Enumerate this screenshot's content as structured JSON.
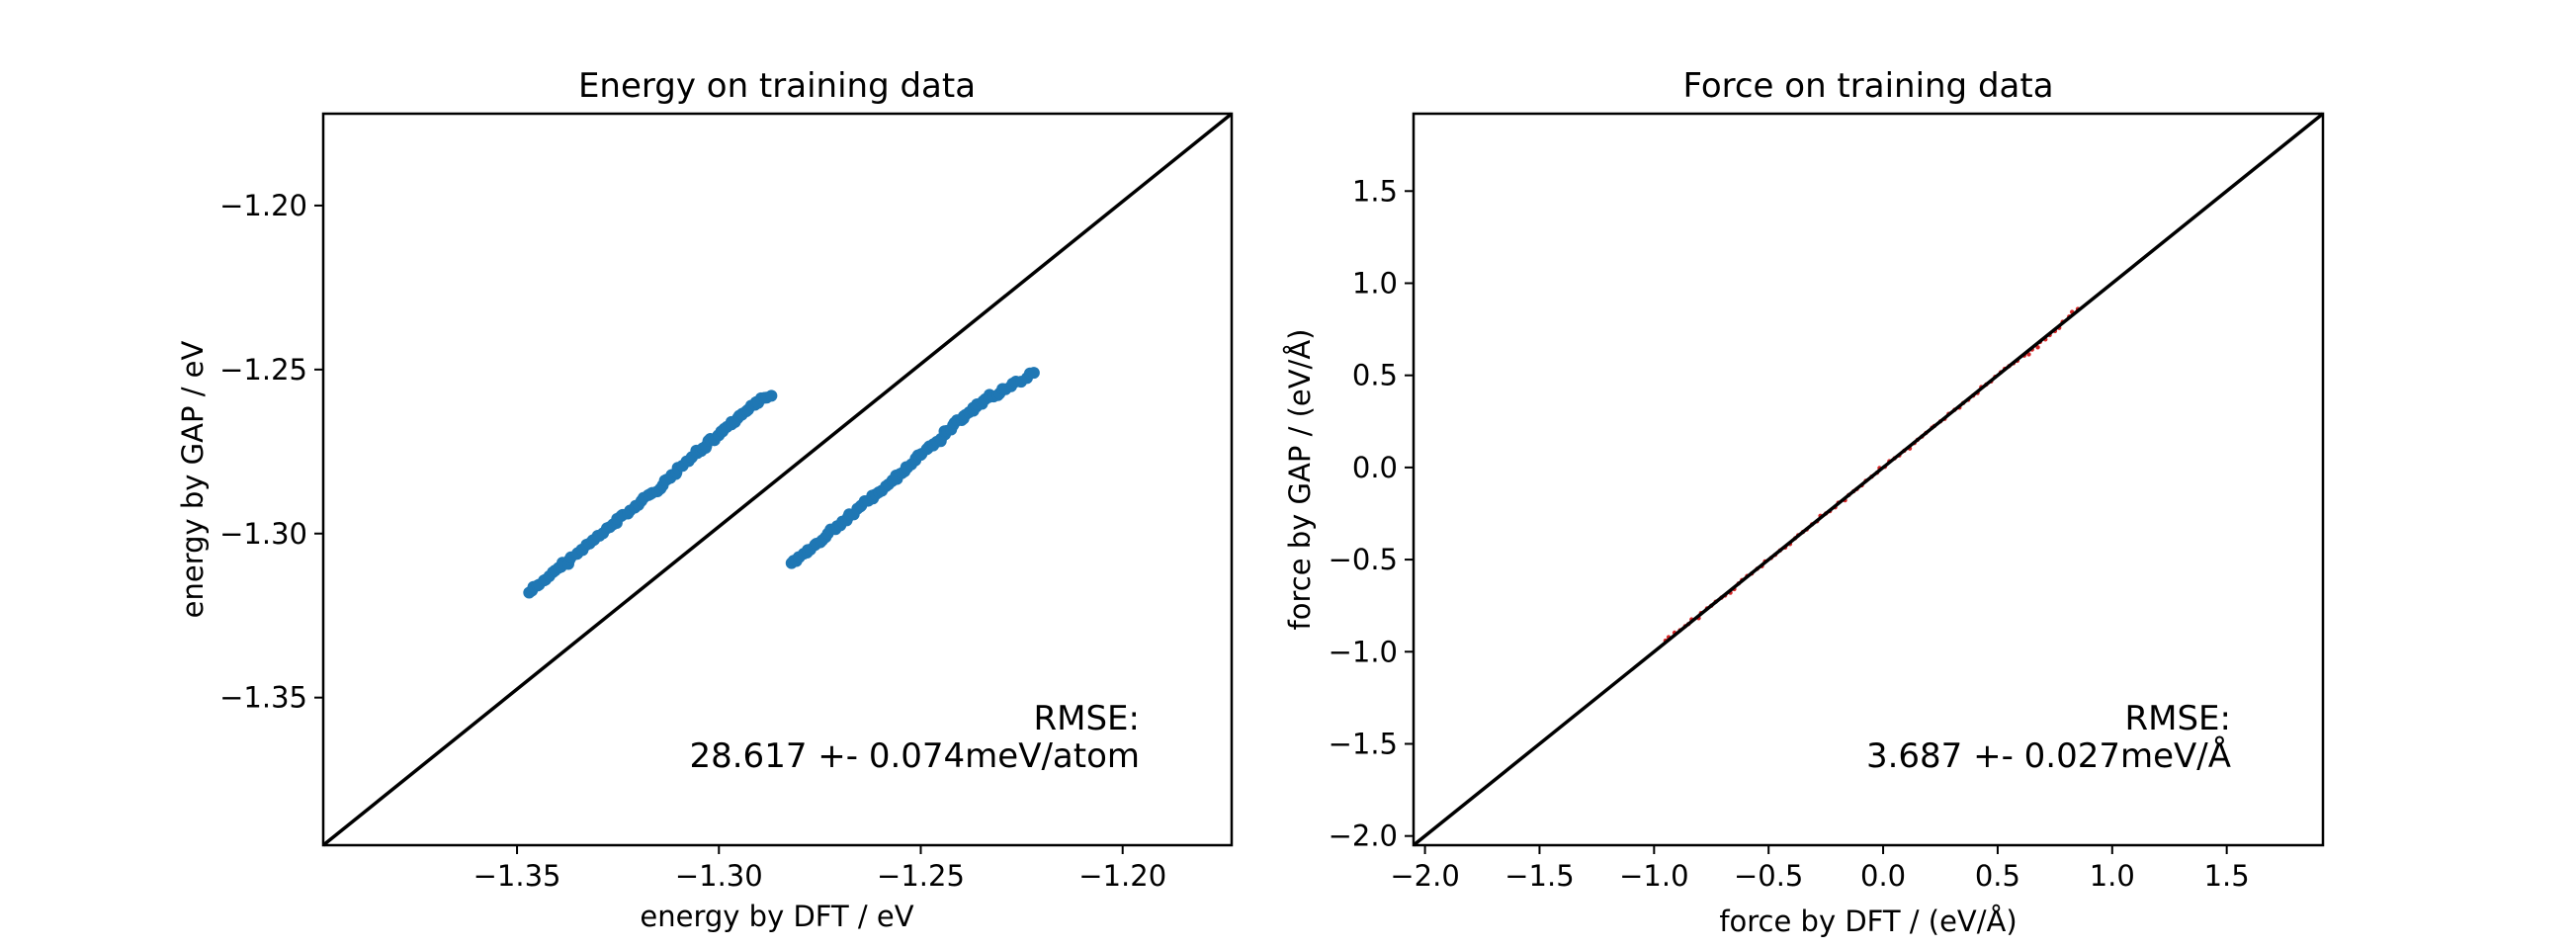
{
  "chart_data": [
    {
      "type": "scatter",
      "title": "Energy on training data",
      "xlabel": "energy by DFT / eV",
      "ylabel": "energy by GAP / eV",
      "xlim": [
        -1.398,
        -1.173
      ],
      "ylim": [
        -1.395,
        -1.172
      ],
      "x_ticks": [
        -1.35,
        -1.3,
        -1.25,
        -1.2
      ],
      "x_tick_labels": [
        "−1.35",
        "−1.30",
        "−1.25",
        "−1.20"
      ],
      "y_ticks": [
        -1.2,
        -1.25,
        -1.3,
        -1.35
      ],
      "y_tick_labels": [
        "−1.20",
        "−1.25",
        "−1.30",
        "−1.35"
      ],
      "grid": false,
      "marker_color": "#1f77b4",
      "reference_line": "y = x",
      "series": [
        {
          "x": [
            -1.347,
            -1.342,
            -1.337,
            -1.332,
            -1.327,
            -1.322,
            -1.317,
            -1.312,
            -1.308,
            -1.304,
            -1.3,
            -1.296,
            -1.292,
            -1.287
          ],
          "y": [
            -1.318,
            -1.313,
            -1.308,
            -1.303,
            -1.298,
            -1.293,
            -1.288,
            -1.283,
            -1.278,
            -1.274,
            -1.27,
            -1.266,
            -1.261,
            -1.258
          ]
        },
        {
          "x": [
            -1.282,
            -1.278,
            -1.273,
            -1.268,
            -1.263,
            -1.258,
            -1.254,
            -1.25,
            -1.246,
            -1.242,
            -1.238,
            -1.234,
            -1.229,
            -1.222
          ],
          "y": [
            -1.309,
            -1.305,
            -1.3,
            -1.295,
            -1.29,
            -1.285,
            -1.281,
            -1.276,
            -1.272,
            -1.267,
            -1.263,
            -1.259,
            -1.256,
            -1.251
          ]
        }
      ],
      "annotation": [
        "RMSE:",
        "28.617 +- 0.074meV/atom"
      ]
    },
    {
      "type": "scatter",
      "title": "Force on training data",
      "xlabel": "force by DFT / (eV/Å)",
      "ylabel": "force by GAP / (eV/Å)",
      "xlim": [
        -2.05,
        1.92
      ],
      "ylim": [
        -2.05,
        1.92
      ],
      "x_ticks": [
        -2.0,
        -1.5,
        -1.0,
        -0.5,
        0.0,
        0.5,
        1.0,
        1.5
      ],
      "x_tick_labels": [
        "−2.0",
        "−1.5",
        "−1.0",
        "−0.5",
        "0.0",
        "0.5",
        "1.0",
        "1.5"
      ],
      "y_ticks": [
        1.5,
        1.0,
        0.5,
        0.0,
        -0.5,
        -1.0,
        -1.5,
        -2.0
      ],
      "y_tick_labels": [
        "1.5",
        "1.0",
        "0.5",
        "0.0",
        "−0.5",
        "−1.0",
        "−1.5",
        "−2.0"
      ],
      "grid": false,
      "marker_color": "#d62728",
      "reference_line": "y = x",
      "series": [
        {
          "x": [
            -0.95,
            -0.85,
            -0.75,
            -0.65,
            -0.55,
            -0.45,
            -0.35,
            -0.25,
            -0.15,
            -0.05,
            0.05,
            0.15,
            0.25,
            0.35,
            0.45,
            0.55,
            0.65,
            0.75,
            0.85
          ],
          "y": [
            -0.94,
            -0.85,
            -0.75,
            -0.66,
            -0.55,
            -0.45,
            -0.35,
            -0.25,
            -0.15,
            -0.05,
            0.05,
            0.15,
            0.25,
            0.35,
            0.45,
            0.55,
            0.64,
            0.74,
            0.86
          ]
        }
      ],
      "annotation": [
        "RMSE:",
        "3.687 +- 0.027meV/Å"
      ]
    }
  ]
}
